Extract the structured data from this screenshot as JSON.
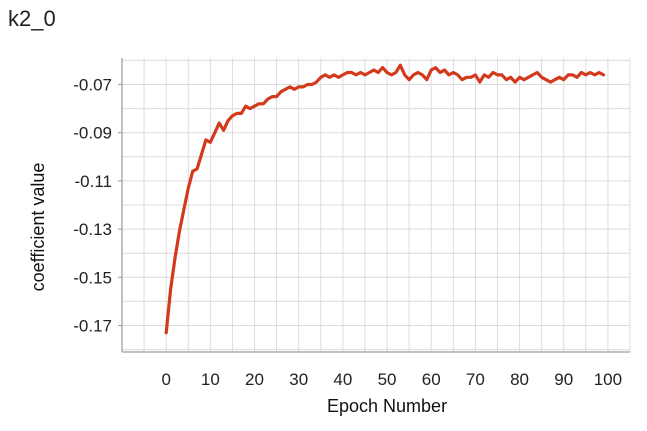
{
  "chart_data": {
    "type": "line",
    "title": "k2_0",
    "xlabel": "Epoch Number",
    "ylabel": "coefficient value",
    "xlim": [
      -10,
      105
    ],
    "ylim": [
      -0.181,
      -0.059
    ],
    "x_ticks": [
      "0",
      "10",
      "20",
      "30",
      "40",
      "50",
      "60",
      "70",
      "80",
      "90",
      "100"
    ],
    "y_ticks": [
      "-0.07",
      "-0.09",
      "-0.11",
      "-0.13",
      "-0.15",
      "-0.17"
    ],
    "grid": true,
    "line_color": "#d33a1c",
    "series": [
      {
        "x": [
          0,
          1,
          2,
          3,
          4,
          5,
          6,
          7,
          8,
          9,
          10,
          11,
          12,
          13,
          14,
          15,
          16,
          17,
          18,
          19,
          20,
          21,
          22,
          23,
          24,
          25,
          26,
          27,
          28,
          29,
          30,
          31,
          32,
          33,
          34,
          35,
          36,
          37,
          38,
          39,
          40,
          41,
          42,
          43,
          44,
          45,
          46,
          47,
          48,
          49,
          50,
          51,
          52,
          53,
          54,
          55,
          56,
          57,
          58,
          59,
          60,
          61,
          62,
          63,
          64,
          65,
          66,
          67,
          68,
          69,
          70,
          71,
          72,
          73,
          74,
          75,
          76,
          77,
          78,
          79,
          80,
          81,
          82,
          83,
          84,
          85,
          86,
          87,
          88,
          89,
          90,
          91,
          92,
          93,
          94,
          95,
          96,
          97,
          98,
          99
        ],
        "y": [
          -0.173,
          -0.155,
          -0.142,
          -0.131,
          -0.122,
          -0.113,
          -0.106,
          -0.105,
          -0.099,
          -0.093,
          -0.094,
          -0.09,
          -0.086,
          -0.089,
          -0.085,
          -0.083,
          -0.082,
          -0.082,
          -0.079,
          -0.08,
          -0.079,
          -0.078,
          -0.078,
          -0.076,
          -0.075,
          -0.075,
          -0.073,
          -0.072,
          -0.071,
          -0.072,
          -0.071,
          -0.071,
          -0.07,
          -0.07,
          -0.069,
          -0.067,
          -0.066,
          -0.067,
          -0.066,
          -0.067,
          -0.066,
          -0.065,
          -0.065,
          -0.066,
          -0.065,
          -0.066,
          -0.065,
          -0.064,
          -0.065,
          -0.063,
          -0.065,
          -0.066,
          -0.065,
          -0.062,
          -0.066,
          -0.068,
          -0.066,
          -0.065,
          -0.066,
          -0.068,
          -0.064,
          -0.063,
          -0.065,
          -0.064,
          -0.066,
          -0.065,
          -0.066,
          -0.068,
          -0.067,
          -0.067,
          -0.066,
          -0.069,
          -0.066,
          -0.067,
          -0.065,
          -0.066,
          -0.066,
          -0.068,
          -0.067,
          -0.069,
          -0.067,
          -0.068,
          -0.067,
          -0.066,
          -0.065,
          -0.067,
          -0.068,
          -0.069,
          -0.068,
          -0.067,
          -0.068,
          -0.066,
          -0.066,
          -0.067,
          -0.065,
          -0.066,
          -0.065,
          -0.066,
          -0.065,
          -0.066
        ]
      }
    ]
  }
}
